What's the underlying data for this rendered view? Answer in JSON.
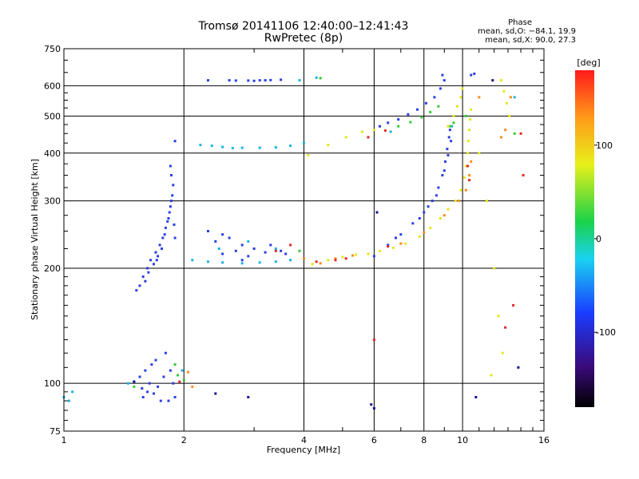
{
  "chart_data": {
    "type": "scatter",
    "title": "Tromsø 20141106 12:40:00–12:41:43",
    "subtitle": "RwPretec (8p)",
    "stats": {
      "heading": "Phase",
      "o_mode": "mean, sd,O: −84.1, 19.9",
      "x_mode": "mean, sd,X:  90.0, 27.3"
    },
    "xlabel": "Frequency [MHz]",
    "ylabel": "Stationary phase Virtual Height [km]",
    "x_scale": "log",
    "y_scale": "log",
    "xlim": [
      1,
      16
    ],
    "ylim": [
      75,
      750
    ],
    "x_ticks": [
      1,
      2,
      4,
      6,
      8,
      10,
      16
    ],
    "y_ticks": [
      75,
      100,
      200,
      300,
      400,
      500,
      600,
      750
    ],
    "grid": true,
    "colorbar": {
      "label": "[deg]",
      "range": [
        -180,
        180
      ],
      "ticks": [
        100,
        0,
        -100
      ]
    },
    "series": [
      {
        "color": "#2a3fe6",
        "points": [
          [
            1.75,
            90
          ],
          [
            1.58,
            92
          ],
          [
            1.62,
            95
          ],
          [
            1.83,
            90
          ],
          [
            1.9,
            92
          ],
          [
            1.68,
            94
          ],
          [
            1.72,
            98
          ],
          [
            1.55,
            104
          ],
          [
            1.6,
            108
          ],
          [
            1.66,
            112
          ],
          [
            1.78,
            104
          ],
          [
            1.85,
            108
          ],
          [
            1.5,
            101
          ],
          [
            1.7,
            115
          ],
          [
            1.8,
            120
          ],
          [
            1.64,
            100
          ],
          [
            1.88,
            100
          ],
          [
            1.57,
            97
          ],
          [
            1.52,
            175
          ],
          [
            1.58,
            190
          ],
          [
            1.62,
            200
          ],
          [
            1.65,
            210
          ],
          [
            1.7,
            220
          ],
          [
            1.74,
            230
          ],
          [
            1.77,
            240
          ],
          [
            1.8,
            255
          ],
          [
            1.83,
            270
          ],
          [
            1.85,
            290
          ],
          [
            1.87,
            310
          ],
          [
            1.88,
            330
          ],
          [
            1.86,
            350
          ],
          [
            1.85,
            370
          ],
          [
            1.6,
            185
          ],
          [
            1.68,
            205
          ],
          [
            1.72,
            215
          ],
          [
            1.76,
            225
          ],
          [
            1.79,
            245
          ],
          [
            1.82,
            265
          ],
          [
            1.55,
            180
          ],
          [
            1.63,
            195
          ],
          [
            1.71,
            210
          ],
          [
            1.84,
            280
          ],
          [
            1.86,
            300
          ],
          [
            1.89,
            260
          ],
          [
            1.9,
            240
          ],
          [
            2.3,
            620
          ],
          [
            2.6,
            620
          ],
          [
            2.9,
            619
          ],
          [
            3.1,
            620
          ],
          [
            3.3,
            621
          ],
          [
            3.5,
            622
          ],
          [
            2.7,
            619
          ],
          [
            3.0,
            618
          ],
          [
            3.2,
            620
          ],
          [
            2.5,
            218
          ],
          [
            2.7,
            222
          ],
          [
            2.9,
            215
          ],
          [
            3.2,
            220
          ],
          [
            3.5,
            222
          ],
          [
            2.4,
            235
          ],
          [
            2.6,
            240
          ],
          [
            2.8,
            230
          ],
          [
            3.0,
            225
          ],
          [
            2.3,
            250
          ],
          [
            2.5,
            245
          ],
          [
            3.3,
            230
          ],
          [
            2.8,
            210
          ],
          [
            3.6,
            218
          ],
          [
            6.2,
            470
          ],
          [
            6.5,
            480
          ],
          [
            6.9,
            490
          ],
          [
            7.3,
            505
          ],
          [
            7.7,
            520
          ],
          [
            8.1,
            540
          ],
          [
            8.5,
            560
          ],
          [
            8.8,
            590
          ],
          [
            9.0,
            620
          ],
          [
            8.9,
            640
          ],
          [
            6.0,
            215
          ],
          [
            6.5,
            230
          ],
          [
            7.0,
            245
          ],
          [
            7.5,
            262
          ],
          [
            8.0,
            280
          ],
          [
            8.4,
            300
          ],
          [
            8.7,
            325
          ],
          [
            8.9,
            350
          ],
          [
            9.05,
            380
          ],
          [
            9.15,
            410
          ],
          [
            9.25,
            440
          ],
          [
            9.3,
            460
          ],
          [
            9.35,
            430
          ],
          [
            8.6,
            310
          ],
          [
            7.8,
            270
          ],
          [
            6.8,
            240
          ],
          [
            8.2,
            290
          ],
          [
            9.0,
            360
          ],
          [
            9.2,
            395
          ],
          [
            10.5,
            640
          ],
          [
            10.7,
            645
          ],
          [
            1.9,
            430
          ]
        ]
      },
      {
        "color": "#19b3e6",
        "points": [
          [
            1.0,
            92
          ],
          [
            1.03,
            90
          ],
          [
            1.05,
            95
          ],
          [
            1.45,
            100
          ],
          [
            1.98,
            108
          ],
          [
            2.1,
            210
          ],
          [
            2.3,
            208
          ],
          [
            2.5,
            207
          ],
          [
            2.8,
            206
          ],
          [
            3.1,
            207
          ],
          [
            3.4,
            208
          ],
          [
            3.7,
            210
          ],
          [
            2.45,
            225
          ],
          [
            2.9,
            235
          ],
          [
            3.4,
            225
          ],
          [
            2.2,
            420
          ],
          [
            2.5,
            415
          ],
          [
            2.8,
            413
          ],
          [
            3.1,
            413
          ],
          [
            3.4,
            414
          ],
          [
            3.7,
            418
          ],
          [
            4.0,
            425
          ],
          [
            2.35,
            418
          ],
          [
            2.65,
            412
          ],
          [
            3.9,
            620
          ],
          [
            4.3,
            630
          ],
          [
            6.6,
            455
          ],
          [
            9.4,
            470
          ],
          [
            13.5,
            560
          ]
        ]
      },
      {
        "color": "#33cc33",
        "points": [
          [
            1.93,
            105
          ],
          [
            1.9,
            112
          ],
          [
            2.0,
            102
          ],
          [
            1.5,
            98
          ],
          [
            3.9,
            222
          ],
          [
            4.4,
            628
          ],
          [
            6.9,
            470
          ],
          [
            7.4,
            482
          ],
          [
            7.9,
            496
          ],
          [
            8.3,
            512
          ],
          [
            8.7,
            530
          ],
          [
            9.3,
            470
          ],
          [
            9.5,
            480
          ],
          [
            10.2,
            500
          ],
          [
            13.5,
            450
          ]
        ]
      },
      {
        "color": "#e6e61a",
        "points": [
          [
            4.2,
            205
          ],
          [
            4.6,
            210
          ],
          [
            5.0,
            214
          ],
          [
            5.4,
            217
          ],
          [
            5.8,
            218
          ],
          [
            6.2,
            222
          ],
          [
            6.7,
            226
          ],
          [
            7.2,
            232
          ],
          [
            7.8,
            242
          ],
          [
            8.3,
            255
          ],
          [
            8.8,
            270
          ],
          [
            9.2,
            285
          ],
          [
            9.6,
            300
          ],
          [
            9.9,
            320
          ],
          [
            10.1,
            345
          ],
          [
            10.2,
            370
          ],
          [
            10.3,
            400
          ],
          [
            10.35,
            430
          ],
          [
            10.4,
            460
          ],
          [
            10.45,
            490
          ],
          [
            10.5,
            520
          ],
          [
            9.2,
            470
          ],
          [
            9.5,
            500
          ],
          [
            9.7,
            530
          ],
          [
            9.9,
            560
          ],
          [
            10.0,
            590
          ],
          [
            12.5,
            620
          ],
          [
            12.7,
            580
          ],
          [
            12.9,
            540
          ],
          [
            13.1,
            500
          ],
          [
            11.0,
            400
          ],
          [
            11.5,
            300
          ],
          [
            12.0,
            200
          ],
          [
            12.3,
            150
          ],
          [
            12.6,
            120
          ],
          [
            11.8,
            105
          ],
          [
            4.1,
            395
          ],
          [
            4.6,
            420
          ],
          [
            5.1,
            440
          ],
          [
            5.6,
            455
          ],
          [
            6.0,
            460
          ]
        ]
      },
      {
        "color": "#ff8c1a",
        "points": [
          [
            2.05,
            107
          ],
          [
            2.1,
            98
          ],
          [
            4.0,
            212
          ],
          [
            4.4,
            206
          ],
          [
            4.8,
            212
          ],
          [
            5.3,
            216
          ],
          [
            7.0,
            232
          ],
          [
            8.0,
            248
          ],
          [
            9.0,
            275
          ],
          [
            9.8,
            300
          ],
          [
            10.2,
            320
          ],
          [
            10.4,
            350
          ],
          [
            10.5,
            380
          ],
          [
            11.0,
            560
          ],
          [
            12.5,
            440
          ],
          [
            13.2,
            560
          ],
          [
            12.8,
            460
          ]
        ]
      },
      {
        "color": "#e62626",
        "points": [
          [
            1.95,
            101
          ],
          [
            3.4,
            222
          ],
          [
            3.7,
            230
          ],
          [
            4.3,
            208
          ],
          [
            5.1,
            212
          ],
          [
            5.8,
            440
          ],
          [
            6.4,
            458
          ],
          [
            10.3,
            370
          ],
          [
            10.4,
            340
          ],
          [
            12.8,
            140
          ],
          [
            13.4,
            160
          ],
          [
            14.0,
            450
          ],
          [
            14.2,
            350
          ],
          [
            6.0,
            130
          ],
          [
            4.8,
            210
          ],
          [
            6.5,
            228
          ]
        ]
      },
      {
        "color": "#14148c",
        "points": [
          [
            1.5,
            101
          ],
          [
            2.4,
            94
          ],
          [
            2.9,
            92
          ],
          [
            10.8,
            92
          ],
          [
            13.8,
            110
          ],
          [
            6.0,
            86
          ],
          [
            5.9,
            88
          ],
          [
            11.9,
            620
          ],
          [
            6.1,
            280
          ]
        ]
      }
    ]
  }
}
